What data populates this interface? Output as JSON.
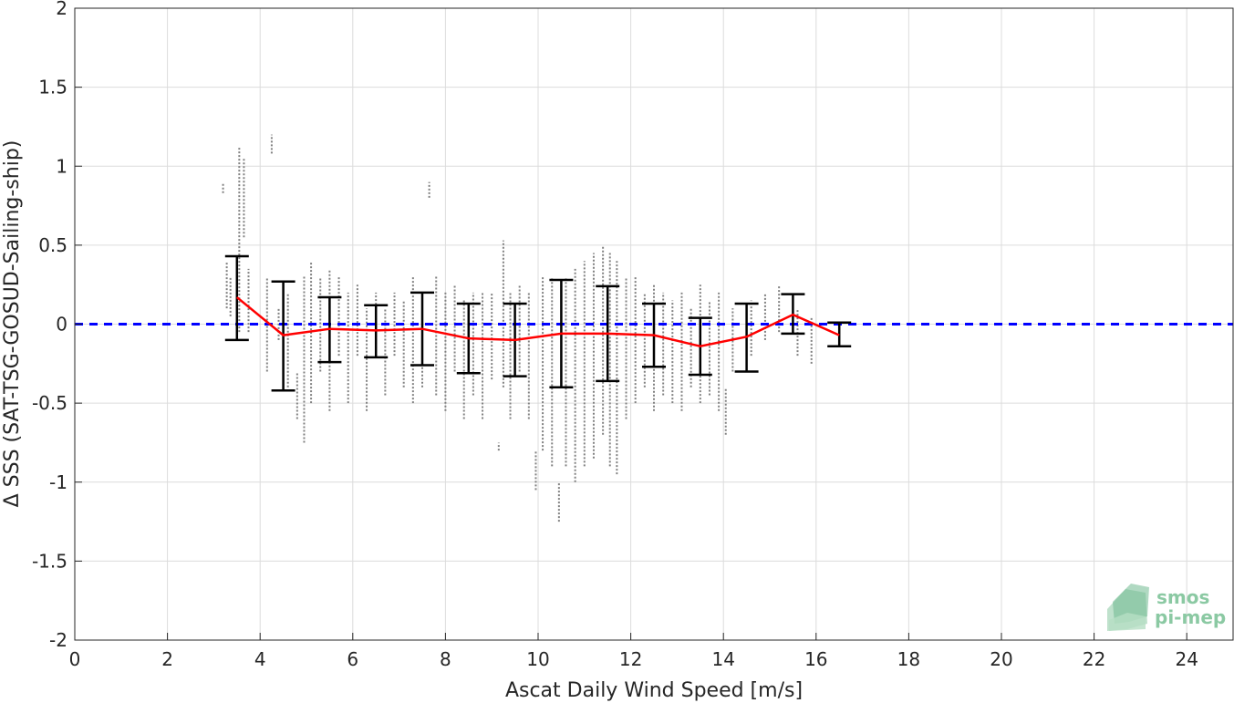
{
  "chart_data": {
    "type": "scatter",
    "xlabel": "Ascat Daily Wind Speed [m/s]",
    "ylabel": "Δ SSS (SAT-TSG-GOSUD-Sailing-ship)",
    "xlim": [
      0,
      25
    ],
    "ylim": [
      -2,
      2
    ],
    "xticks": [
      0,
      2,
      4,
      6,
      8,
      10,
      12,
      14,
      16,
      18,
      20,
      22,
      24
    ],
    "yticks": [
      -2,
      -1.5,
      -1,
      -0.5,
      0,
      0.5,
      1,
      1.5,
      2
    ],
    "ytick_labels": [
      "-2",
      "-1.5",
      "-1",
      "-0.5",
      "0",
      "0.5",
      "1",
      "1.5",
      "2"
    ],
    "grid": true,
    "reference_line": {
      "y": 0,
      "color": "#0000ff",
      "style": "dashed"
    },
    "mean_series": {
      "color": "#ff0000",
      "x": [
        3.5,
        4.5,
        5.5,
        6.5,
        7.5,
        8.5,
        9.5,
        10.5,
        11.5,
        12.5,
        13.5,
        14.5,
        15.5,
        16.5
      ],
      "y": [
        0.17,
        -0.07,
        -0.03,
        -0.04,
        -0.03,
        -0.09,
        -0.1,
        -0.06,
        -0.06,
        -0.07,
        -0.14,
        -0.08,
        0.06,
        -0.07
      ]
    },
    "error_bars": {
      "color": "#000000",
      "x": [
        3.5,
        4.5,
        5.5,
        6.5,
        7.5,
        8.5,
        9.5,
        10.5,
        11.5,
        12.5,
        13.5,
        14.5,
        15.5,
        16.5
      ],
      "low": [
        -0.1,
        -0.42,
        -0.24,
        -0.21,
        -0.26,
        -0.31,
        -0.33,
        -0.4,
        -0.36,
        -0.27,
        -0.32,
        -0.3,
        -0.06,
        -0.14
      ],
      "high": [
        0.43,
        0.27,
        0.17,
        0.12,
        0.2,
        0.13,
        0.13,
        0.28,
        0.24,
        0.13,
        0.04,
        0.13,
        0.19,
        0.01
      ]
    },
    "scatter": {
      "color": "#808080",
      "columns": [
        [
          3.2,
          0.83,
          0.89
        ],
        [
          3.28,
          0.1,
          0.4
        ],
        [
          3.36,
          0.05,
          0.3
        ],
        [
          3.55,
          -0.05,
          1.12
        ],
        [
          3.65,
          0.55,
          1.05
        ],
        [
          3.75,
          -0.05,
          0.35
        ],
        [
          4.15,
          -0.3,
          0.3
        ],
        [
          4.25,
          1.08,
          1.2
        ],
        [
          4.4,
          -0.1,
          0.1
        ],
        [
          4.6,
          -0.4,
          0.2
        ],
        [
          4.8,
          -0.6,
          -0.3
        ],
        [
          4.95,
          -0.75,
          0.3
        ],
        [
          5.1,
          -0.5,
          0.4
        ],
        [
          5.3,
          -0.3,
          0.3
        ],
        [
          5.5,
          -0.55,
          0.35
        ],
        [
          5.7,
          -0.2,
          0.3
        ],
        [
          5.9,
          -0.5,
          0.2
        ],
        [
          6.1,
          -0.2,
          0.25
        ],
        [
          6.3,
          -0.55,
          0.1
        ],
        [
          6.5,
          -0.2,
          0.2
        ],
        [
          6.7,
          -0.45,
          0.1
        ],
        [
          6.9,
          -0.2,
          0.2
        ],
        [
          7.1,
          -0.4,
          0.15
        ],
        [
          7.3,
          -0.5,
          0.3
        ],
        [
          7.5,
          -0.4,
          0.2
        ],
        [
          7.65,
          0.8,
          0.9
        ],
        [
          7.8,
          -0.45,
          0.3
        ],
        [
          8.0,
          -0.55,
          0.2
        ],
        [
          8.2,
          -0.3,
          0.25
        ],
        [
          8.4,
          -0.6,
          0.15
        ],
        [
          8.6,
          -0.45,
          0.2
        ],
        [
          8.8,
          -0.6,
          0.2
        ],
        [
          9.0,
          -0.35,
          0.2
        ],
        [
          9.15,
          -0.8,
          -0.75
        ],
        [
          9.25,
          -0.4,
          0.53
        ],
        [
          9.4,
          -0.6,
          0.2
        ],
        [
          9.6,
          -0.3,
          0.25
        ],
        [
          9.8,
          -0.6,
          0.2
        ],
        [
          9.95,
          -1.05,
          -0.8
        ],
        [
          10.1,
          -0.8,
          0.3
        ],
        [
          10.3,
          -0.9,
          0.3
        ],
        [
          10.45,
          -1.25,
          -1.0
        ],
        [
          10.6,
          -0.9,
          0.3
        ],
        [
          10.8,
          -1.0,
          0.35
        ],
        [
          11.0,
          -0.9,
          0.4
        ],
        [
          11.2,
          -0.85,
          0.45
        ],
        [
          11.4,
          -0.7,
          0.5
        ],
        [
          11.55,
          -0.9,
          0.45
        ],
        [
          11.7,
          -0.95,
          0.4
        ],
        [
          11.9,
          -0.6,
          0.3
        ],
        [
          12.1,
          -0.5,
          0.3
        ],
        [
          12.3,
          -0.4,
          0.2
        ],
        [
          12.5,
          -0.55,
          0.25
        ],
        [
          12.7,
          -0.45,
          0.2
        ],
        [
          12.9,
          -0.5,
          0.15
        ],
        [
          13.1,
          -0.55,
          0.2
        ],
        [
          13.3,
          -0.4,
          0.1
        ],
        [
          13.5,
          -0.5,
          0.25
        ],
        [
          13.7,
          -0.45,
          0.15
        ],
        [
          13.9,
          -0.55,
          0.2
        ],
        [
          14.05,
          -0.7,
          -0.4
        ],
        [
          14.2,
          -0.3,
          0.1
        ],
        [
          14.6,
          -0.2,
          0.15
        ],
        [
          14.9,
          -0.1,
          0.2
        ],
        [
          15.2,
          -0.05,
          0.25
        ],
        [
          15.6,
          -0.2,
          0.1
        ],
        [
          15.9,
          -0.25,
          0.05
        ]
      ]
    }
  },
  "logo": {
    "line1": "smos",
    "line2": "pi-mep",
    "color": "#8bc9a3"
  }
}
